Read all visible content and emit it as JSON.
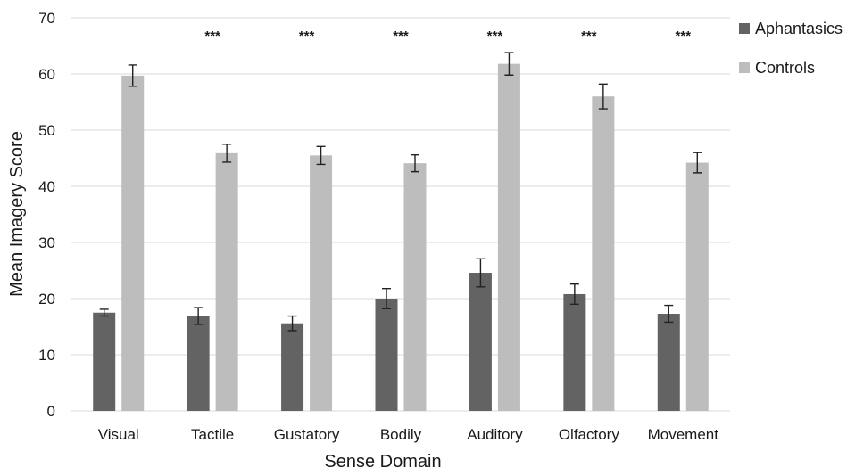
{
  "chart_data": {
    "type": "bar",
    "title": "",
    "xlabel": "Sense Domain",
    "ylabel": "Mean Imagery Score",
    "ylim": [
      0,
      70
    ],
    "yticks": [
      0,
      10,
      20,
      30,
      40,
      50,
      60,
      70
    ],
    "grid": true,
    "legend_position": "right",
    "categories": [
      "Visual",
      "Tactile",
      "Gustatory",
      "Bodily",
      "Auditory",
      "Olfactory",
      "Movement"
    ],
    "series": [
      {
        "name": "Aphantasics",
        "color": "#636363",
        "values": [
          17.5,
          16.9,
          15.6,
          20.0,
          24.6,
          20.8,
          17.3
        ],
        "errors": [
          0.6,
          1.5,
          1.3,
          1.8,
          2.5,
          1.8,
          1.5
        ]
      },
      {
        "name": "Controls",
        "color": "#bdbdbd",
        "values": [
          59.7,
          45.9,
          45.5,
          44.1,
          61.8,
          56.0,
          44.2
        ],
        "errors": [
          1.9,
          1.6,
          1.6,
          1.5,
          2.0,
          2.2,
          1.8
        ]
      }
    ],
    "annotations": [
      "",
      "***",
      "***",
      "***",
      "***",
      "***",
      "***"
    ]
  }
}
